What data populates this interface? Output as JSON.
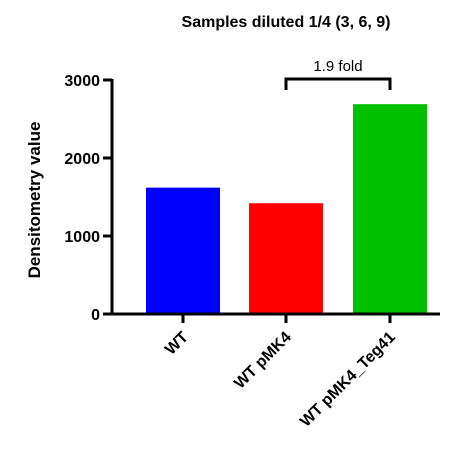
{
  "chart_data": {
    "type": "bar",
    "title": "Samples diluted 1/4 (3, 6, 9)",
    "xlabel": "",
    "ylabel": "Densitometry value",
    "categories": [
      "WT",
      "WT pMK4",
      "WT pMK4_Teg41"
    ],
    "values": [
      1620,
      1420,
      2690
    ],
    "colors": [
      "#0000ff",
      "#ff0000",
      "#00c000"
    ],
    "ylim": [
      0,
      3000
    ],
    "yticks": [
      0,
      1000,
      2000,
      3000
    ],
    "ytick_labels": [
      "0",
      "1000",
      "2000",
      "3000"
    ],
    "grid": false,
    "annotation": {
      "text": "1.9 fold",
      "from_category": "WT pMK4",
      "to_category": "WT pMK4_Teg41"
    }
  }
}
